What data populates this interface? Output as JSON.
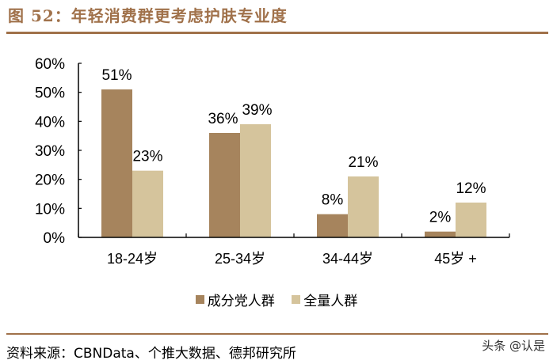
{
  "header": {
    "title": "图 52：年轻消费群更考虑护肤专业度"
  },
  "footer": {
    "source": "资料来源：CBNData、个推大数据、德邦研究所",
    "watermark": "头条 @认是"
  },
  "colors": {
    "series_1": "#a6845d",
    "series_2": "#d5c49c",
    "accent": "#a0714a"
  },
  "legend": [
    {
      "label": "成分党人群",
      "color": "#a6845d"
    },
    {
      "label": "全量人群",
      "color": "#d5c49c"
    }
  ],
  "chart_data": {
    "type": "bar",
    "title": "年轻消费群更考虑护肤专业度",
    "xlabel": "",
    "ylabel": "",
    "categories": [
      "18-24岁",
      "25-34岁",
      "34-44岁",
      "45岁 +"
    ],
    "series": [
      {
        "name": "成分党人群",
        "values": [
          51,
          36,
          8,
          2
        ],
        "labels": [
          "51%",
          "36%",
          "8%",
          "2%"
        ]
      },
      {
        "name": "全量人群",
        "values": [
          23,
          39,
          21,
          12
        ],
        "labels": [
          "23%",
          "39%",
          "21%",
          "12%"
        ]
      }
    ],
    "ylim": [
      0,
      60
    ],
    "yticks": [
      "0%",
      "10%",
      "20%",
      "30%",
      "40%",
      "50%",
      "60%"
    ],
    "grid": false,
    "legend_position": "bottom"
  }
}
